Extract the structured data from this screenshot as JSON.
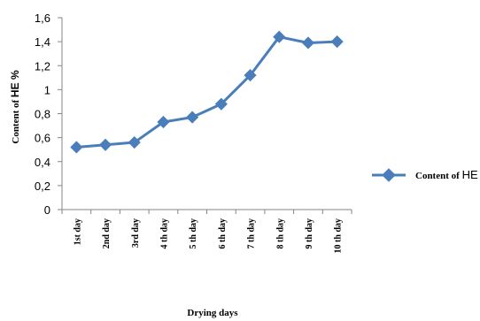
{
  "chart_data": {
    "type": "line",
    "categories": [
      "1st day",
      "2nd day",
      "3rd day",
      "4 th day",
      "5 th day",
      "6 th day",
      "7 th day",
      "8 th day",
      "9 th day",
      "10 th day"
    ],
    "series": [
      {
        "name_prefix": "Content of ",
        "name_suffix": "HE",
        "values": [
          0.52,
          0.54,
          0.56,
          0.73,
          0.77,
          0.88,
          1.12,
          1.44,
          1.39,
          1.4
        ],
        "color": "#4a7ebb"
      }
    ],
    "xlabel": "Drying days",
    "ylabel_prefix": "Content of ",
    "ylabel_suffix": "HE %",
    "yticks": [
      "0",
      "0,2",
      "0,4",
      "0,6",
      "0,8",
      "1",
      "1,2",
      "1,4",
      "1,6"
    ],
    "ylim": [
      0,
      1.6
    ],
    "grid": false,
    "legend": "right"
  }
}
